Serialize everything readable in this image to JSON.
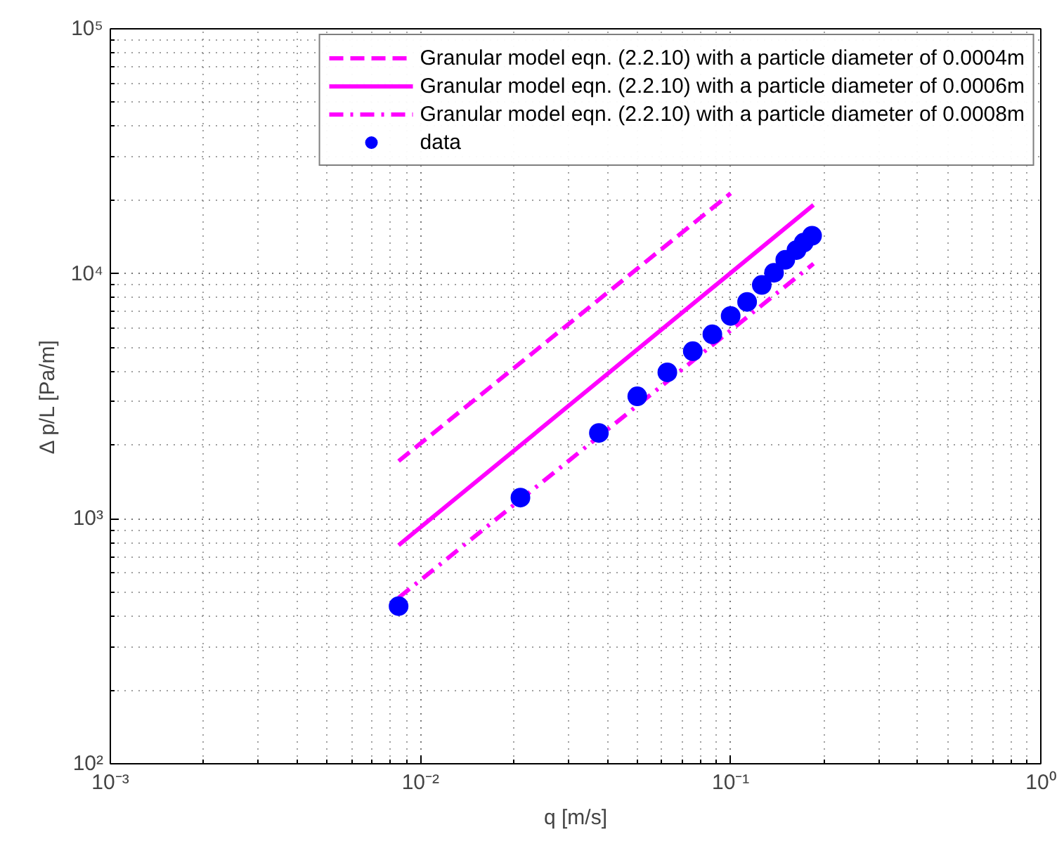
{
  "chart_data": {
    "type": "line",
    "xlabel": "q [m/s]",
    "ylabel": "Δ p/L [Pa/m]",
    "log": "xy",
    "grid": true,
    "legend": "top right",
    "xlim": [
      0.001,
      1
    ],
    "ylim": [
      100,
      100000
    ],
    "xticks": [
      {
        "value": 0.001,
        "label": "10⁻³"
      },
      {
        "value": 0.01,
        "label": "10⁻²"
      },
      {
        "value": 0.1,
        "label": "10⁻¹"
      },
      {
        "value": 1,
        "label": "10⁰"
      }
    ],
    "yticks": [
      {
        "value": 100,
        "label": "10²"
      },
      {
        "value": 1000,
        "label": "10³"
      },
      {
        "value": 10000,
        "label": "10⁴"
      },
      {
        "value": 100000,
        "label": "10⁵"
      }
    ],
    "series": [
      {
        "name": "Granular model eqn. (2.2.10) with a particle diameter of 0.0004m",
        "color": "#ff00ff",
        "line_style": "dashed",
        "marker": "none",
        "x": [
          0.0085,
          0.1
        ],
        "values": [
          1720,
          21300
        ]
      },
      {
        "name": "Granular model eqn. (2.2.10) with a particle diameter of 0.0006m",
        "color": "#ff00ff",
        "line_style": "solid",
        "marker": "none",
        "x": [
          0.0085,
          0.185
        ],
        "values": [
          780,
          19100
        ]
      },
      {
        "name": "Granular model eqn. (2.2.10) with a particle diameter of 0.0008m",
        "color": "#ff00ff",
        "line_style": "dashdot",
        "marker": "none",
        "x": [
          0.0085,
          0.185
        ],
        "values": [
          476,
          11000
        ]
      },
      {
        "name": "data",
        "type": "scatter",
        "color": "#0000ff",
        "marker": "circle",
        "x": [
          0.0085,
          0.021,
          0.0376,
          0.05,
          0.0625,
          0.0755,
          0.0873,
          0.1,
          0.113,
          0.126,
          0.138,
          0.15,
          0.163,
          0.172,
          0.183
        ],
        "values": [
          440,
          1220,
          2240,
          3160,
          3960,
          4830,
          5660,
          6730,
          7680,
          9000,
          10100,
          11400,
          12500,
          13400,
          14300
        ]
      }
    ]
  }
}
